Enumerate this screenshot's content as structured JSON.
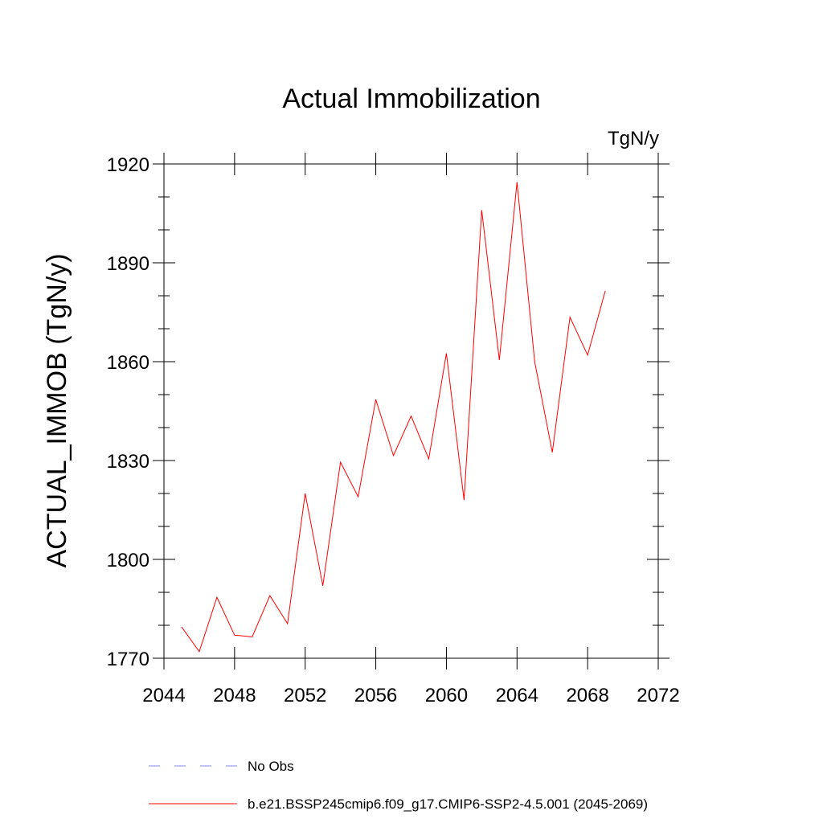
{
  "chart_data": {
    "type": "line",
    "title": "Actual Immobilization",
    "units_label": "TgN/y",
    "xlabel": "",
    "ylabel": "ACTUAL_IMMOB  (TgN/y)",
    "xlim": [
      2044,
      2072
    ],
    "ylim": [
      1770,
      1920
    ],
    "x_ticks": [
      2044,
      2048,
      2052,
      2056,
      2060,
      2064,
      2068,
      2072
    ],
    "x_tick_labels": [
      "2044",
      "2048",
      "2052",
      "2056",
      "2060",
      "2064",
      "2068",
      "2072"
    ],
    "x_minor_step": 1,
    "y_ticks": [
      1770,
      1800,
      1830,
      1860,
      1890,
      1920
    ],
    "y_tick_labels": [
      "1770",
      "1800",
      "1830",
      "1860",
      "1890",
      "1920"
    ],
    "y_minor_step": 10,
    "grid": false,
    "series": [
      {
        "name": "b.e21.BSSP245cmip6.f09_g17.CMIP6-SSP2-4.5.001 (2045-2069)",
        "color": "#ff0000",
        "style": "solid",
        "x": [
          2045,
          2046,
          2047,
          2048,
          2049,
          2050,
          2051,
          2052,
          2053,
          2054,
          2055,
          2056,
          2057,
          2058,
          2059,
          2060,
          2061,
          2062,
          2063,
          2064,
          2065,
          2066,
          2067,
          2068,
          2069
        ],
        "values": [
          1779.5,
          1772,
          1788.5,
          1777,
          1776.5,
          1789,
          1780.5,
          1820,
          1792,
          1829.5,
          1819,
          1848.5,
          1831.5,
          1843.5,
          1830.5,
          1862.5,
          1818,
          1906,
          1860.5,
          1914.5,
          1860,
          1832.5,
          1873.5,
          1862,
          1881.5
        ]
      }
    ],
    "legend": {
      "placement": "bottom",
      "entries": [
        {
          "label": "No Obs",
          "color": "#8080ff",
          "style": "dashed"
        },
        {
          "label": "b.e21.BSSP245cmip6.f09_g17.CMIP6-SSP2-4.5.001 (2045-2069)",
          "color": "#ff0000",
          "style": "solid"
        }
      ]
    }
  }
}
